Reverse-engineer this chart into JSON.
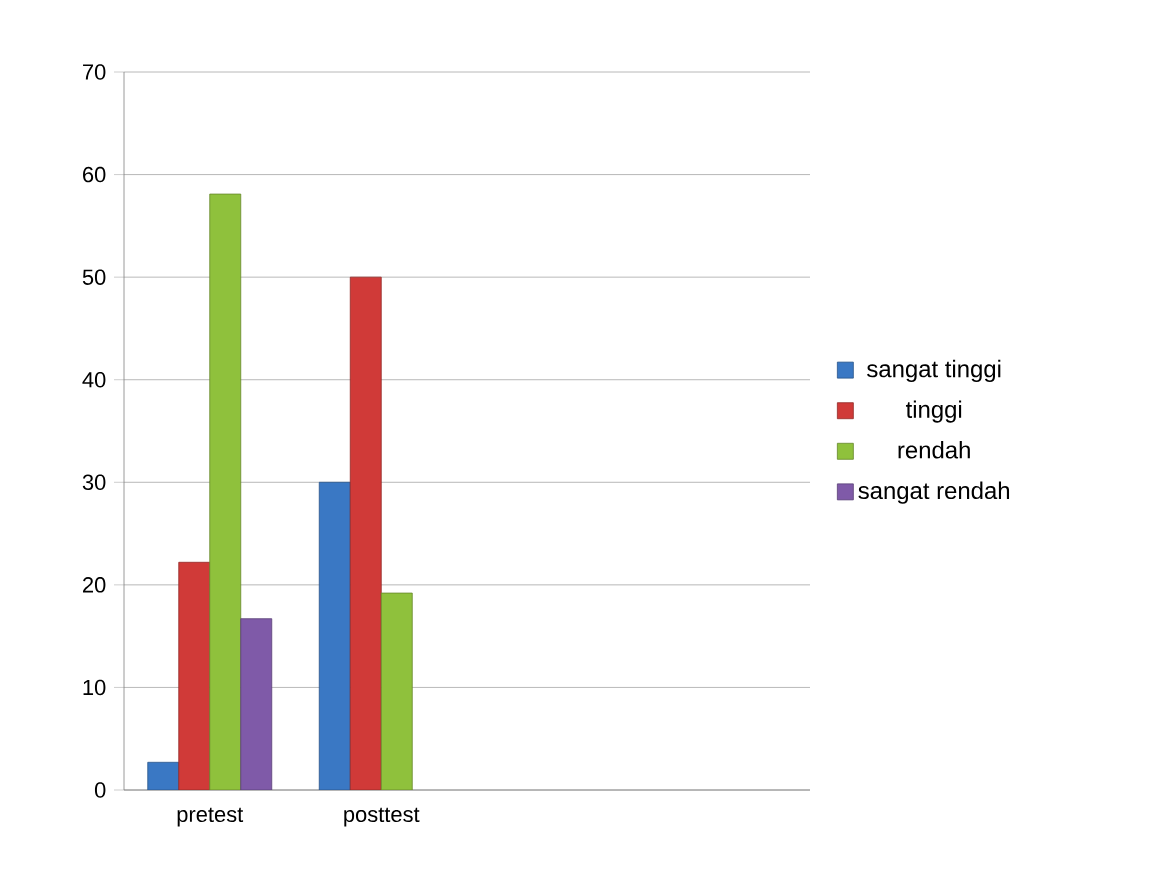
{
  "chart_data": {
    "type": "bar",
    "categories": [
      "pretest",
      "posttest",
      null,
      null
    ],
    "series": [
      {
        "name": "sangat tinggi",
        "color": "#3a78c4",
        "values": [
          2.7,
          30,
          null,
          null
        ]
      },
      {
        "name": "tinggi",
        "color": "#d03a38",
        "values": [
          22.2,
          50,
          null,
          null
        ]
      },
      {
        "name": "rendah",
        "color": "#8fc13c",
        "values": [
          58.1,
          19.2,
          null,
          null
        ]
      },
      {
        "name": "sangat rendah",
        "color": "#7f5aa8",
        "values": [
          16.7,
          null,
          null,
          null
        ]
      }
    ],
    "ylim": [
      0,
      70
    ],
    "yticks": [
      0,
      10,
      20,
      30,
      40,
      50,
      60,
      70
    ],
    "grid": "y",
    "legend": "right"
  }
}
